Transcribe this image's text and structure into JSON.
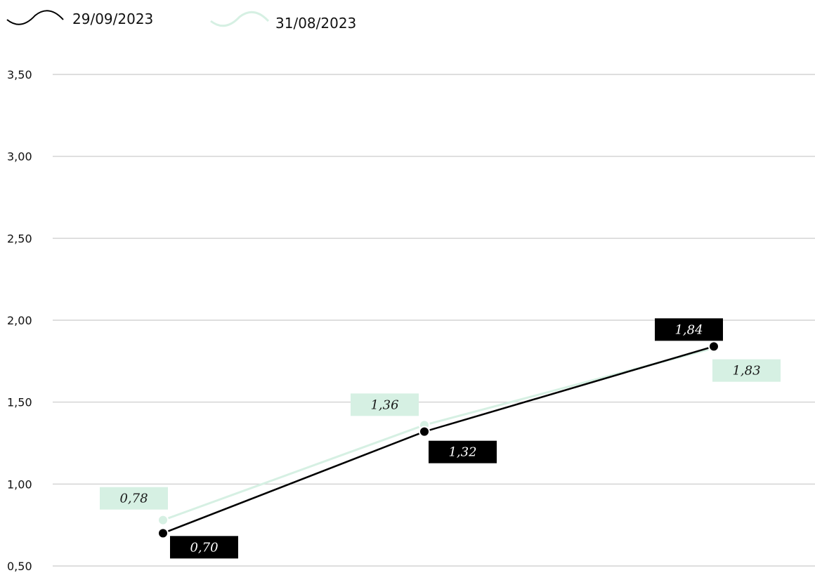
{
  "chart_data": {
    "type": "line",
    "title": "",
    "xlabel": "",
    "ylabel": "",
    "ylim": [
      0.5,
      3.5
    ],
    "yticks": [
      "3,50",
      "3,00",
      "2,50",
      "2,00",
      "1,50",
      "1,00",
      "0,50"
    ],
    "ytick_values": [
      3.5,
      3.0,
      2.5,
      2.0,
      1.5,
      1.0,
      0.5
    ],
    "grid": true,
    "legend_position": "top-left",
    "series": [
      {
        "name": "29/09/2023",
        "color": "#000000",
        "values": [
          0.7,
          1.32,
          1.84
        ],
        "labels": [
          "0,70",
          "1,32",
          "1,84"
        ]
      },
      {
        "name": "31/08/2023",
        "color": "#d6f0e3",
        "values": [
          0.78,
          1.36,
          1.83
        ],
        "labels": [
          "0,78",
          "1,36",
          "1,83"
        ]
      }
    ]
  }
}
